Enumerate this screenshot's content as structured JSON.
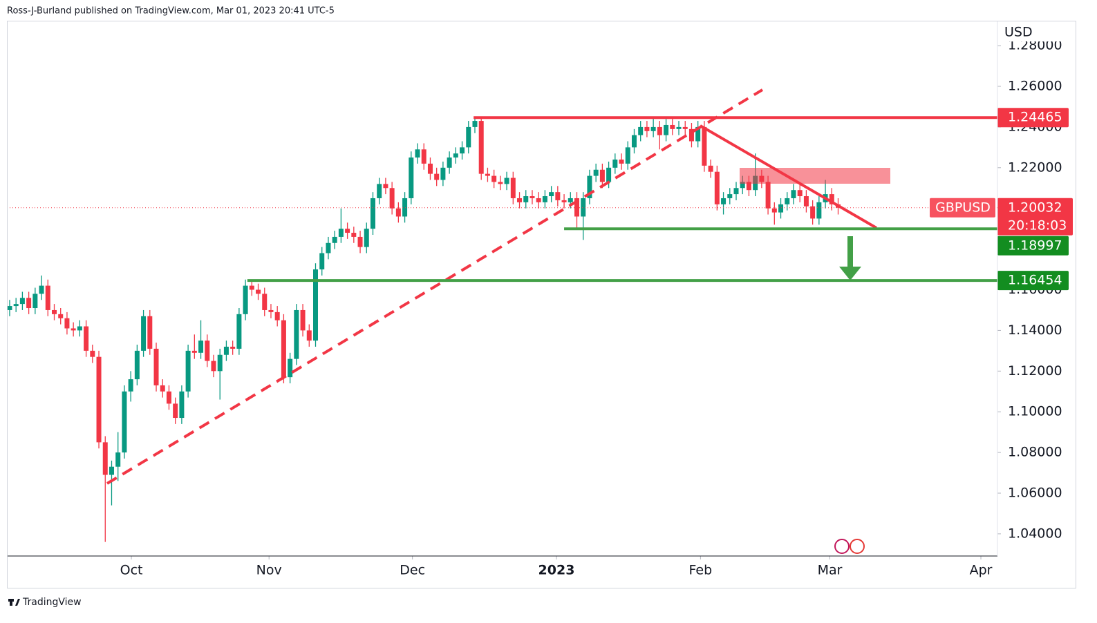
{
  "chart_data": {
    "type": "candlestick",
    "header": "Ross-J-Burland published on TradingView.com, Mar 01, 2023 20:41 UTC-5",
    "currency": "USD",
    "symbol": "GBPUSD",
    "countdown": "20:18:03",
    "footer": "TradingView",
    "up_color": "#089981",
    "down_color": "#f23645",
    "last_price": {
      "value": 1.20032,
      "label": "1.20032"
    },
    "levels": [
      {
        "value": 1.24465,
        "label": "1.24465",
        "color": "#f23645",
        "start": 72.8
      },
      {
        "value": 1.18997,
        "label": "1.18997",
        "color": "#43a047",
        "start": 87
      },
      {
        "value": 1.16454,
        "label": "1.16454",
        "color": "#43a047",
        "start": 37.3
      }
    ],
    "open": [
      1.15,
      1.152,
      1.153,
      1.156,
      1.151,
      1.158,
      1.162,
      1.15,
      1.148,
      1.146,
      1.141,
      1.14,
      1.142,
      1.13,
      1.127,
      1.085,
      1.069,
      1.073,
      1.08,
      1.11,
      1.116,
      1.13,
      1.147,
      1.131,
      1.113,
      1.11,
      1.104,
      1.097,
      1.11,
      1.13,
      1.129,
      1.135,
      1.125,
      1.12,
      1.128,
      1.132,
      1.131,
      1.148,
      1.162,
      1.16,
      1.158,
      1.15,
      1.149,
      1.145,
      1.117,
      1.126,
      1.15,
      1.14,
      1.135,
      1.17,
      1.178,
      1.183,
      1.186,
      1.19,
      1.188,
      1.186,
      1.181,
      1.19,
      1.205,
      1.212,
      1.21,
      1.2,
      1.196,
      1.205,
      1.225,
      1.229,
      1.222,
      1.217,
      1.214,
      1.22,
      1.225,
      1.227,
      1.23,
      1.24,
      1.243,
      1.217,
      1.216,
      1.213,
      1.212,
      1.215,
      1.205,
      1.203,
      1.206,
      1.205,
      1.203,
      1.206,
      1.208,
      1.204,
      1.203,
      1.205,
      1.196,
      1.205,
      1.216,
      1.219,
      1.213,
      1.22,
      1.224,
      1.222,
      1.23,
      1.236,
      1.24,
      1.238,
      1.24,
      1.236,
      1.241,
      1.239,
      1.24,
      1.239,
      1.233,
      1.24,
      1.221,
      1.218,
      1.202,
      1.205,
      1.207,
      1.21,
      1.213,
      1.209,
      1.216,
      1.213,
      1.2,
      1.198,
      1.202,
      1.205,
      1.209,
      1.206,
      1.201,
      1.195,
      1.203,
      1.207,
      1.202
    ],
    "high": [
      1.155,
      1.156,
      1.159,
      1.159,
      1.161,
      1.167,
      1.165,
      1.153,
      1.151,
      1.149,
      1.144,
      1.145,
      1.145,
      1.133,
      1.13,
      1.088,
      1.076,
      1.09,
      1.113,
      1.12,
      1.133,
      1.15,
      1.15,
      1.134,
      1.116,
      1.113,
      1.107,
      1.113,
      1.133,
      1.138,
      1.145,
      1.138,
      1.128,
      1.131,
      1.135,
      1.135,
      1.151,
      1.165,
      1.165,
      1.163,
      1.161,
      1.153,
      1.152,
      1.148,
      1.129,
      1.153,
      1.153,
      1.143,
      1.173,
      1.181,
      1.186,
      1.189,
      1.2,
      1.193,
      1.191,
      1.189,
      1.193,
      1.208,
      1.215,
      1.215,
      1.213,
      1.203,
      1.208,
      1.228,
      1.232,
      1.232,
      1.225,
      1.22,
      1.223,
      1.228,
      1.23,
      1.233,
      1.243,
      1.2446,
      1.245,
      1.22,
      1.219,
      1.216,
      1.218,
      1.218,
      1.208,
      1.209,
      1.209,
      1.208,
      1.209,
      1.211,
      1.211,
      1.207,
      1.208,
      1.208,
      1.208,
      1.219,
      1.222,
      1.222,
      1.223,
      1.227,
      1.227,
      1.233,
      1.239,
      1.243,
      1.243,
      1.244,
      1.243,
      1.244,
      1.244,
      1.243,
      1.243,
      1.242,
      1.243,
      1.243,
      1.224,
      1.221,
      1.208,
      1.21,
      1.213,
      1.216,
      1.216,
      1.227,
      1.219,
      1.216,
      1.203,
      1.205,
      1.208,
      1.212,
      1.212,
      1.209,
      1.204,
      1.206,
      1.214,
      1.21,
      1.205
    ],
    "low": [
      1.147,
      1.149,
      1.15,
      1.148,
      1.148,
      1.155,
      1.147,
      1.145,
      1.143,
      1.138,
      1.137,
      1.137,
      1.127,
      1.124,
      1.082,
      1.036,
      1.054,
      1.066,
      1.077,
      1.105,
      1.113,
      1.127,
      1.128,
      1.11,
      1.107,
      1.101,
      1.094,
      1.094,
      1.107,
      1.126,
      1.126,
      1.122,
      1.117,
      1.106,
      1.125,
      1.128,
      1.128,
      1.145,
      1.157,
      1.155,
      1.147,
      1.146,
      1.142,
      1.114,
      1.114,
      1.123,
      1.137,
      1.132,
      1.132,
      1.167,
      1.175,
      1.18,
      1.183,
      1.185,
      1.183,
      1.178,
      1.178,
      1.187,
      1.202,
      1.207,
      1.197,
      1.193,
      1.193,
      1.202,
      1.222,
      1.219,
      1.214,
      1.211,
      1.211,
      1.217,
      1.222,
      1.224,
      1.227,
      1.237,
      1.214,
      1.213,
      1.21,
      1.209,
      1.209,
      1.202,
      1.2,
      1.2,
      1.202,
      1.2,
      1.2,
      1.203,
      1.201,
      1.2,
      1.2,
      1.19,
      1.1845,
      1.202,
      1.213,
      1.21,
      1.21,
      1.217,
      1.219,
      1.219,
      1.227,
      1.233,
      1.235,
      1.235,
      1.229,
      1.233,
      1.236,
      1.236,
      1.236,
      1.23,
      1.23,
      1.218,
      1.215,
      1.199,
      1.197,
      1.202,
      1.204,
      1.207,
      1.206,
      1.206,
      1.21,
      1.197,
      1.192,
      1.195,
      1.199,
      1.202,
      1.203,
      1.198,
      1.192,
      1.192,
      1.2,
      1.199,
      1.197
    ],
    "close": [
      1.152,
      1.153,
      1.156,
      1.151,
      1.158,
      1.162,
      1.15,
      1.148,
      1.146,
      1.141,
      1.14,
      1.142,
      1.13,
      1.127,
      1.085,
      1.069,
      1.073,
      1.08,
      1.11,
      1.116,
      1.13,
      1.147,
      1.131,
      1.113,
      1.11,
      1.104,
      1.097,
      1.11,
      1.13,
      1.129,
      1.135,
      1.125,
      1.12,
      1.128,
      1.132,
      1.131,
      1.148,
      1.162,
      1.16,
      1.158,
      1.15,
      1.149,
      1.145,
      1.117,
      1.126,
      1.15,
      1.14,
      1.135,
      1.17,
      1.178,
      1.183,
      1.186,
      1.19,
      1.188,
      1.186,
      1.181,
      1.19,
      1.205,
      1.212,
      1.21,
      1.2,
      1.196,
      1.205,
      1.225,
      1.229,
      1.222,
      1.217,
      1.214,
      1.22,
      1.225,
      1.227,
      1.23,
      1.24,
      1.243,
      1.217,
      1.216,
      1.213,
      1.212,
      1.215,
      1.205,
      1.203,
      1.206,
      1.205,
      1.203,
      1.206,
      1.208,
      1.204,
      1.203,
      1.205,
      1.196,
      1.205,
      1.216,
      1.219,
      1.213,
      1.22,
      1.224,
      1.222,
      1.23,
      1.236,
      1.24,
      1.238,
      1.24,
      1.236,
      1.241,
      1.239,
      1.24,
      1.239,
      1.233,
      1.24,
      1.221,
      1.218,
      1.202,
      1.205,
      1.207,
      1.21,
      1.213,
      1.209,
      1.216,
      1.213,
      1.2,
      1.198,
      1.202,
      1.205,
      1.209,
      1.206,
      1.201,
      1.195,
      1.203,
      1.207,
      1.202,
      1.20032
    ],
    "ylim": [
      1.0291,
      1.29226
    ],
    "yticks": [
      {
        "value": 1.04,
        "label": "1.04000"
      },
      {
        "value": 1.06,
        "label": "1.06000"
      },
      {
        "value": 1.08,
        "label": "1.08000"
      },
      {
        "value": 1.1,
        "label": "1.10000"
      },
      {
        "value": 1.12,
        "label": "1.12000"
      },
      {
        "value": 1.14,
        "label": "1.14000"
      },
      {
        "value": 1.16,
        "label": "1.16000"
      },
      {
        "value": 1.18,
        "label": "1.18000"
      },
      {
        "value": 1.2,
        "label": "1.20000"
      },
      {
        "value": 1.22,
        "label": "1.22000"
      },
      {
        "value": 1.24,
        "label": "1.24000"
      },
      {
        "value": 1.26,
        "label": "1.26000"
      },
      {
        "value": 1.28,
        "label": "1.28000"
      }
    ],
    "xlim": [
      -0.43,
      155
    ],
    "xticks": [
      {
        "value": 19.1,
        "label": "Oct"
      },
      {
        "value": 40.7,
        "label": "Nov"
      },
      {
        "value": 63.2,
        "label": "Dec"
      },
      {
        "value": 85.8,
        "label": "2023"
      },
      {
        "value": 108.4,
        "label": "Feb"
      },
      {
        "value": 128.7,
        "label": "Mar"
      },
      {
        "value": 152.4,
        "label": "Apr"
      }
    ]
  }
}
